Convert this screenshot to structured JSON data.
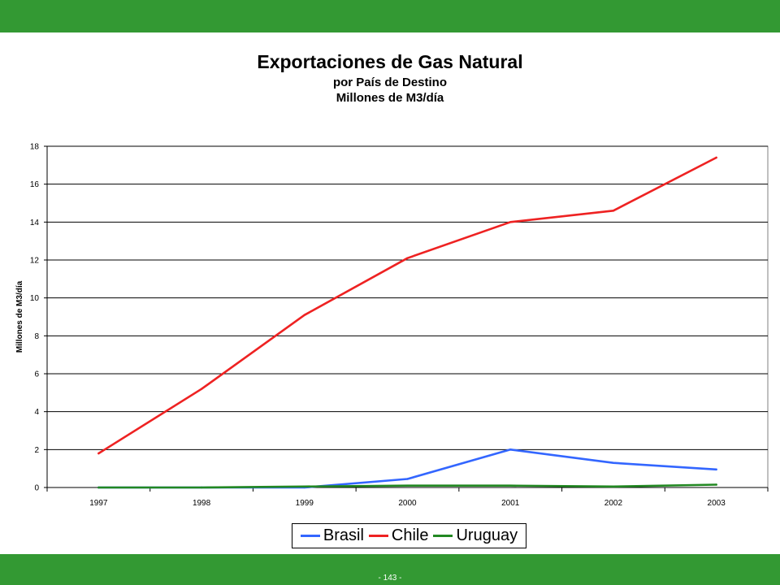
{
  "page": {
    "page_number": "- 143 -"
  },
  "chart_data": {
    "type": "line",
    "title": "Exportaciones de Gas Natural",
    "subtitle_lines": [
      "por País de Destino",
      "Millones de M3/día"
    ],
    "xlabel": "",
    "ylabel": "Millones de M3/día",
    "categories": [
      "1997",
      "1998",
      "1999",
      "2000",
      "2001",
      "2002",
      "2003"
    ],
    "ylim": [
      0,
      18
    ],
    "yticks": [
      0,
      2,
      4,
      6,
      8,
      10,
      12,
      14,
      16,
      18
    ],
    "grid": true,
    "legend_position": "bottom",
    "series": [
      {
        "name": "Brasil",
        "color": "#3366ff",
        "values": [
          0,
          0,
          0,
          0.45,
          2.0,
          1.3,
          0.95
        ]
      },
      {
        "name": "Chile",
        "color": "#ee2222",
        "values": [
          1.8,
          5.2,
          9.1,
          12.1,
          14.0,
          14.6,
          17.4
        ]
      },
      {
        "name": "Uruguay",
        "color": "#228822",
        "values": [
          0,
          0,
          0.05,
          0.1,
          0.1,
          0.05,
          0.15
        ]
      }
    ]
  }
}
